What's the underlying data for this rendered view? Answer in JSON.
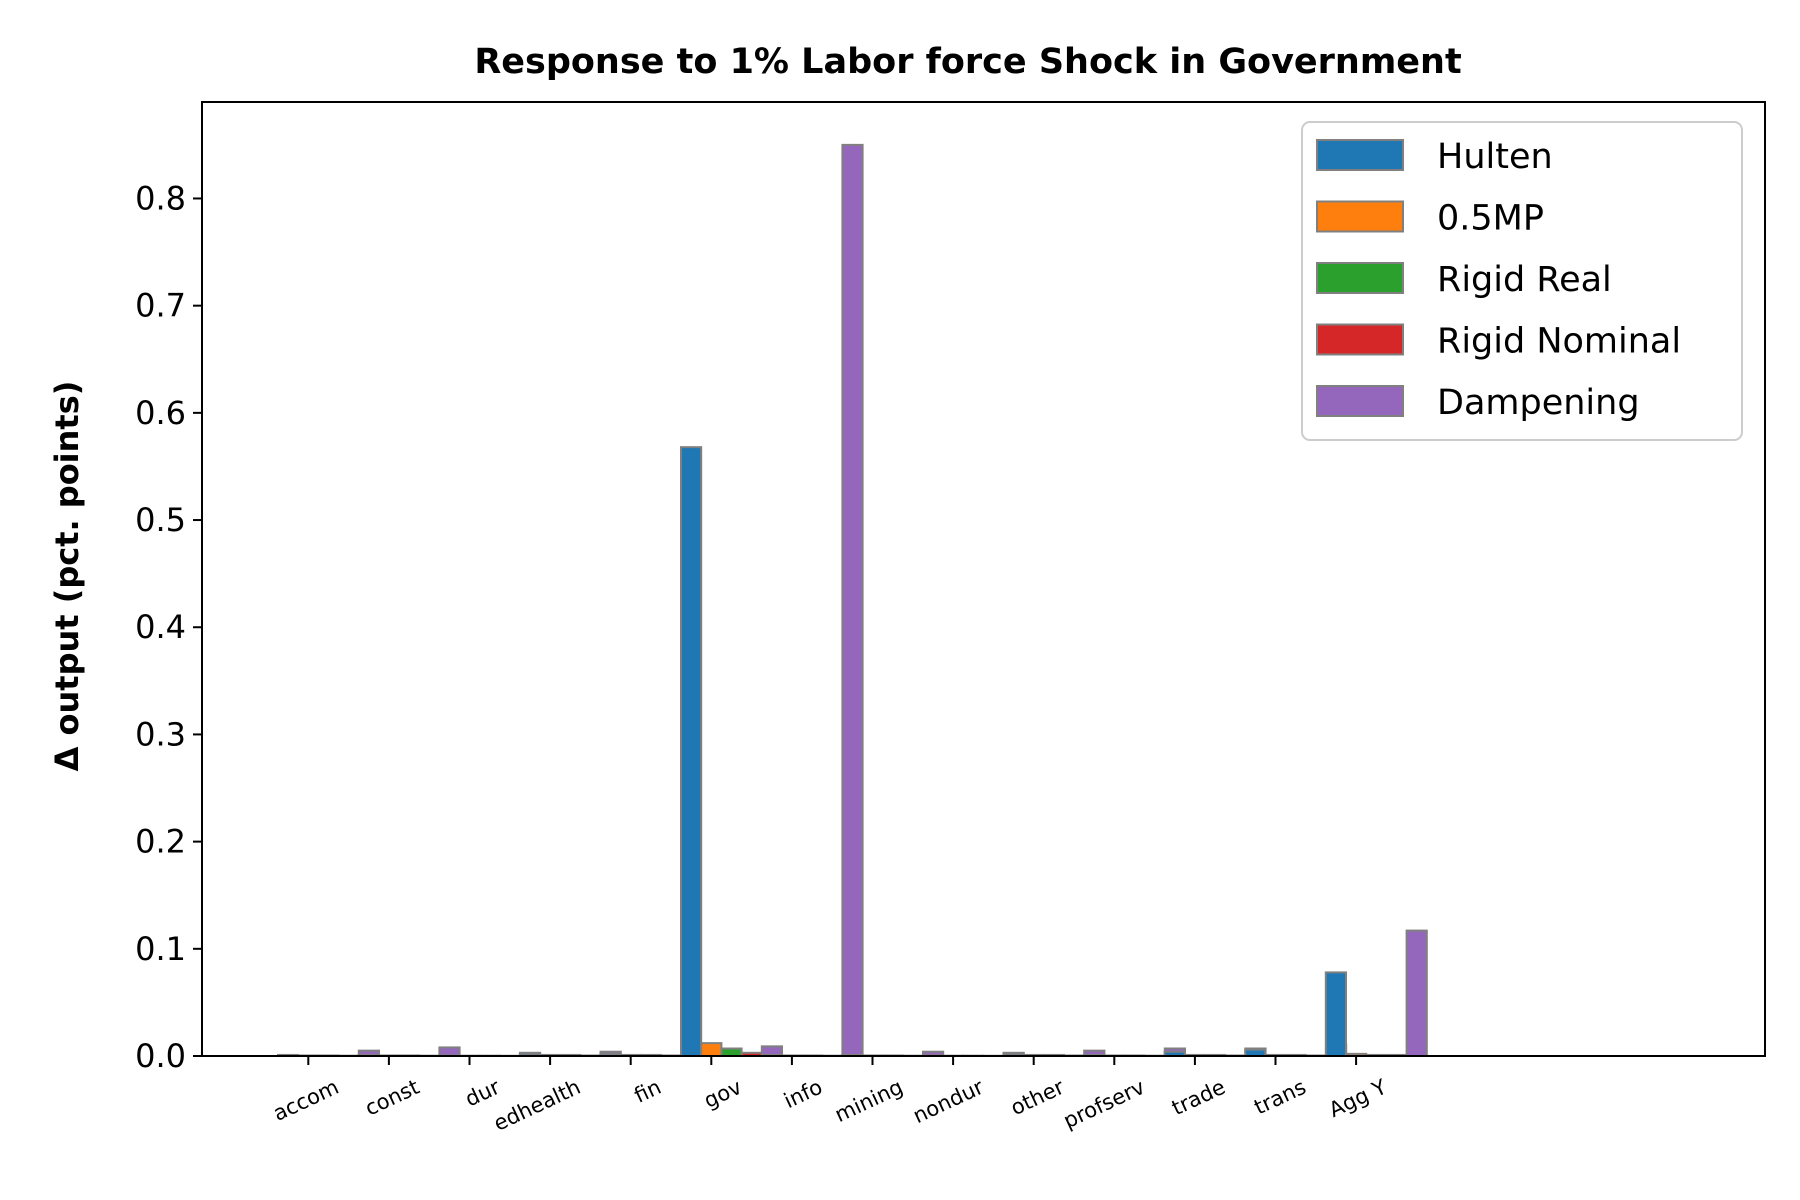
{
  "chart_data": {
    "type": "bar",
    "title": "Response to 1% Labor force Shock in Government",
    "xlabel": "",
    "ylabel": "Δ output (pct. points)",
    "ylim": [
      0,
      0.89
    ],
    "yticks": [
      0.0,
      0.1,
      0.2,
      0.3,
      0.4,
      0.5,
      0.6,
      0.7,
      0.8
    ],
    "ytick_labels": [
      "0.0",
      "0.1",
      "0.2",
      "0.3",
      "0.4",
      "0.5",
      "0.6",
      "0.7",
      "0.8"
    ],
    "grid": false,
    "legend_position": "top-right",
    "categories": [
      "accom",
      "const",
      "dur",
      "edhealth",
      "fin",
      "gov",
      "info",
      "mining",
      "nondur",
      "other",
      "profserv",
      "trade",
      "trans",
      "Agg Y"
    ],
    "series": [
      {
        "name": "Hulten",
        "color": "#1f77b4",
        "values": [
          0.001,
          0.001,
          0.0005,
          0.002,
          0.002,
          0.568,
          0.001,
          0.001,
          0.0005,
          0.002,
          0.001,
          0.004,
          0.006,
          0.078
        ]
      },
      {
        "name": "0.5MP",
        "color": "#ff7f0e",
        "values": [
          0.0005,
          0.0005,
          0.0003,
          0.001,
          0.001,
          0.012,
          0.0005,
          0.0005,
          0.0003,
          0.001,
          0.0005,
          0.001,
          0.001,
          0.002
        ]
      },
      {
        "name": "Rigid Real",
        "color": "#2ca02c",
        "values": [
          0.0005,
          0.0005,
          0.0003,
          0.001,
          0.001,
          0.007,
          0.0005,
          0.0005,
          0.0003,
          0.001,
          0.0005,
          0.001,
          0.001,
          0.001
        ]
      },
      {
        "name": "Rigid Nominal",
        "color": "#d62728",
        "values": [
          0.0003,
          0.0003,
          0.0002,
          0.0005,
          0.0005,
          0.003,
          0.0003,
          0.0003,
          0.0002,
          0.0005,
          0.0003,
          0.0005,
          0.0005,
          0.001
        ]
      },
      {
        "name": "Dampening",
        "color": "#9467bd",
        "values": [
          0.005,
          0.008,
          0.003,
          0.004,
          0.007,
          0.009,
          0.85,
          0.004,
          0.003,
          0.005,
          0.007,
          0.007,
          0.011,
          0.117
        ]
      }
    ]
  },
  "style": {
    "bar_edge_color": "#808080",
    "axis_color": "#000000"
  }
}
